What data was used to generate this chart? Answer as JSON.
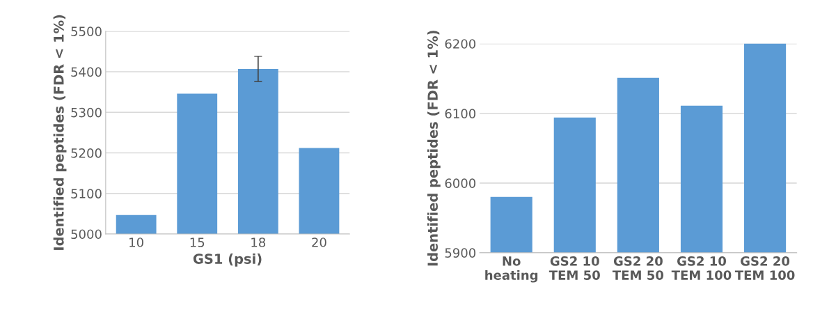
{
  "chart_data": [
    {
      "type": "bar",
      "xlabel": "GS1 (psi)",
      "ylabel": "Identified peptides (FDR < 1%)",
      "categories": [
        "10",
        "15",
        "18",
        "20"
      ],
      "values": [
        5047,
        5346,
        5407,
        5212
      ],
      "errors": [
        null,
        null,
        31,
        null
      ],
      "color": "#5b9bd5",
      "ylim": [
        5000,
        5500
      ],
      "yticks": [
        5000,
        5100,
        5200,
        5300,
        5400,
        5500
      ],
      "grid": "y"
    },
    {
      "type": "bar",
      "ylabel": "Identified peptides (FDR < 1%)",
      "categories": [
        "No\nheating",
        "GS2 10\nTEM 50",
        "GS2 20\nTEM 50",
        "GS2 10\nTEM 100",
        "GS2 20\nTEM 100"
      ],
      "values": [
        5980,
        6094,
        6151,
        6111,
        6200
      ],
      "color": "#5b9bd5",
      "ylim": [
        5900,
        6200
      ],
      "yticks": [
        5900,
        6000,
        6100,
        6200
      ],
      "grid": "y"
    }
  ]
}
